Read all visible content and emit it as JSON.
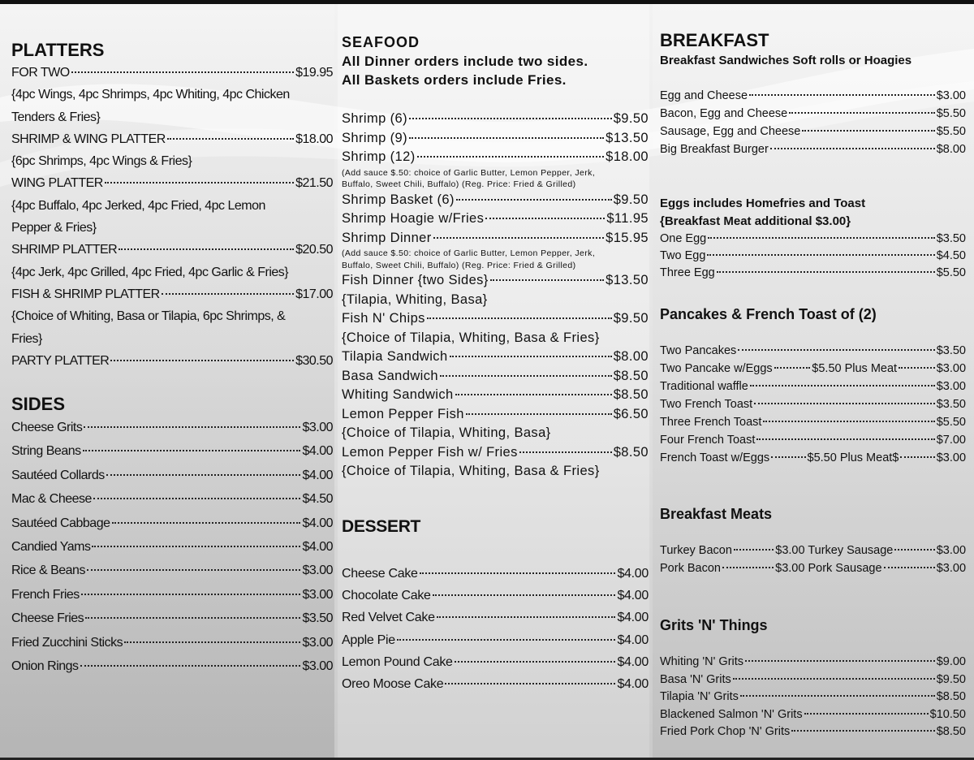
{
  "columns": [
    {
      "sections": [
        {
          "title": "PLATTERS",
          "lines": [
            [
              "FOR TWO",
              "$19.95"
            ],
            "{4pc Wings, 4pc Shrimps, 4pc Whiting, 4pc Chicken",
            "Tenders & Fries}",
            [
              "SHRIMP & WING PLATTER",
              "$18.00"
            ],
            "{6pc Shrimps, 4pc Wings & Fries}",
            [
              "WING PLATTER",
              "$21.50"
            ],
            "{4pc Buffalo, 4pc Jerked, 4pc Fried, 4pc Lemon",
            "Pepper & Fries}",
            [
              "SHRIMP PLATTER",
              "$20.50"
            ],
            "{4pc Jerk, 4pc Grilled, 4pc Fried, 4pc Garlic & Fries}",
            [
              "FISH & SHRIMP PLATTER",
              "$17.00"
            ],
            "{Choice of Whiting, Basa or Tilapia, 6pc Shrimps, &",
            "Fries}",
            [
              "PARTY PLATTER",
              "$30.50"
            ]
          ]
        },
        {
          "title": "SIDES",
          "lines": [
            [
              "Cheese Grits",
              "$3.00"
            ],
            [
              "String Beans",
              "$4.00"
            ],
            [
              "Sautéed Collards",
              "$4.00"
            ],
            [
              "Mac & Cheese",
              "$4.50"
            ],
            [
              "Sautéed Cabbage",
              "$4.00"
            ],
            [
              "Candied Yams",
              "$4.00"
            ],
            [
              "Rice & Beans",
              "$3.00"
            ],
            [
              "French Fries",
              "$3.00"
            ],
            [
              "Cheese Fries",
              "$3.50"
            ],
            [
              "Fried Zucchini Sticks",
              "$3.00"
            ],
            [
              "Onion Rings",
              "$3.00"
            ]
          ]
        }
      ]
    },
    {
      "sections": [
        {
          "title": "SEAFOOD",
          "notes": [
            "All Dinner orders include two sides.",
            "All Baskets orders include Fries."
          ],
          "lines": [
            [
              "Shrimp (6)",
              "$9.50"
            ],
            [
              "Shrimp (9)",
              "$13.50"
            ],
            [
              "Shrimp (12)",
              "$18.00"
            ],
            {
              "note": "(Add sauce $.50: choice of Garlic Butter, Lemon Pepper, Jerk,"
            },
            {
              "note": "Buffalo, Sweet Chili, Buffalo) (Reg. Price: Fried & Grilled)"
            },
            [
              "Shrimp Basket (6)",
              "$9.50"
            ],
            [
              "Shrimp Hoagie w/Fries",
              "$11.95"
            ],
            [
              "Shrimp Dinner",
              "$15.95"
            ],
            {
              "note": "(Add sauce $.50: choice of Garlic Butter, Lemon Pepper, Jerk,"
            },
            {
              "note": "Buffalo, Sweet Chili, Buffalo) (Reg. Price: Fried & Grilled)"
            },
            [
              "Fish Dinner {two Sides}",
              "$13.50"
            ],
            "{Tilapia, Whiting, Basa}",
            [
              "Fish N' Chips",
              "$9.50"
            ],
            "{Choice of Tilapia, Whiting, Basa & Fries}",
            [
              "Tilapia Sandwich",
              "$8.00"
            ],
            [
              "Basa Sandwich",
              "$8.50"
            ],
            [
              "Whiting Sandwich",
              "$8.50"
            ],
            [
              "Lemon Pepper Fish",
              "$6.50"
            ],
            "{Choice of Tilapia, Whiting, Basa}",
            [
              "Lemon Pepper Fish w/ Fries",
              "$8.50"
            ],
            "{Choice of Tilapia, Whiting, Basa & Fries}"
          ]
        },
        {
          "title": "DESSERT",
          "lines": [
            [
              "Cheese Cake",
              "$4.00"
            ],
            [
              "Chocolate Cake",
              "$4.00"
            ],
            [
              "Red Velvet Cake",
              "$4.00"
            ],
            [
              "Apple Pie",
              "$4.00"
            ],
            [
              "Lemon Pound Cake",
              "$4.00"
            ],
            [
              "Oreo Moose Cake",
              "$4.00"
            ]
          ]
        }
      ]
    },
    {
      "sections": [
        {
          "title": "BREAKFAST",
          "notes": [
            "Breakfast Sandwiches Soft rolls or Hoagies"
          ],
          "lines": [
            [
              "Egg and Cheese",
              "$3.00"
            ],
            [
              "Bacon, Egg and Cheese",
              "$5.50"
            ],
            [
              "Sausage, Egg and Cheese",
              "$5.50"
            ],
            [
              "Big Breakfast Burger",
              "$8.00"
            ]
          ]
        },
        {
          "title": "Eggs includes Homefries and Toast",
          "notes": [
            "{Breakfast Meat additional $3.00}"
          ],
          "lines": [
            [
              "One Egg",
              "$3.50"
            ],
            [
              "Two Egg",
              "$4.50"
            ],
            [
              "Three Egg",
              "$5.50"
            ]
          ]
        },
        {
          "title": "Pancakes & French Toast of (2)",
          "lines": [
            [
              "Two Pancakes",
              "$3.50"
            ],
            [
              "Two Pancake w/Eggs",
              "$5.50 Plus Meat",
              "$3.00"
            ],
            [
              "Traditional waffle",
              "$3.00"
            ],
            [
              "Two French Toast",
              "$3.50"
            ],
            [
              "Three French Toast",
              "$5.50"
            ],
            [
              "Four French Toast",
              "$7.00"
            ],
            [
              "French Toast w/Eggs",
              "$5.50 Plus Meat$",
              "$3.00"
            ]
          ]
        },
        {
          "title": "Breakfast Meats",
          "lines": [
            [
              "Turkey Bacon",
              "$3.00 Turkey Sausage",
              "$3.00"
            ],
            [
              "Pork Bacon",
              "$3.00 Pork Sausage",
              "$3.00"
            ]
          ]
        },
        {
          "title": "Grits 'N' Things",
          "lines": [
            [
              "Whiting 'N' Grits",
              "$9.00"
            ],
            [
              "Basa 'N' Grits",
              "$9.50"
            ],
            [
              "Tilapia 'N' Grits",
              "$8.50"
            ],
            [
              "Blackened Salmon 'N' Grits",
              "$10.50"
            ],
            [
              "Fried Pork Chop 'N' Grits",
              "$8.50"
            ]
          ]
        }
      ]
    }
  ]
}
